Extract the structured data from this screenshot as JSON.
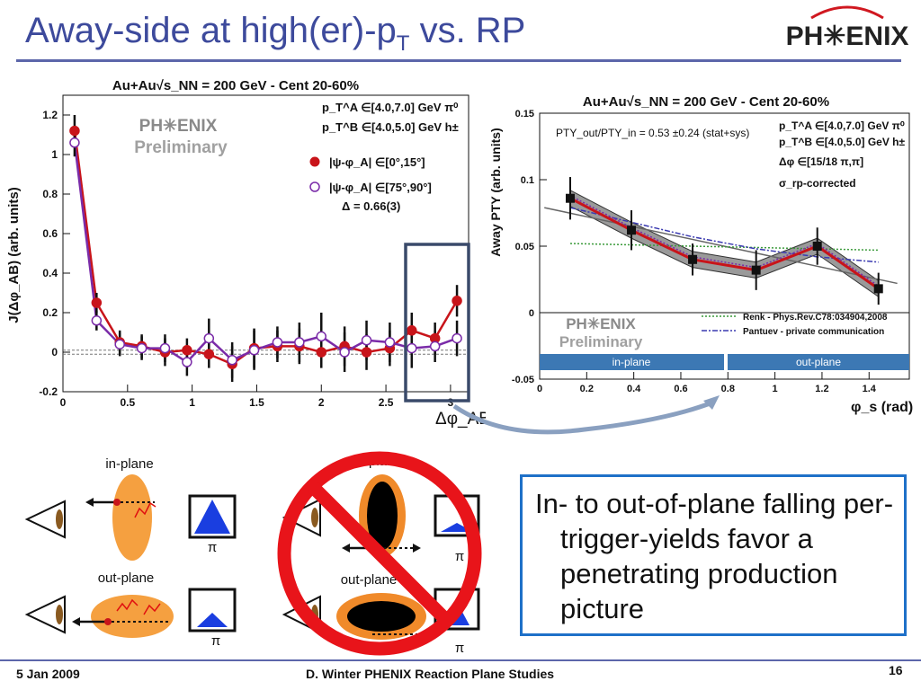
{
  "slide": {
    "title_main": "Away-side at high(er)-p",
    "title_sub": "T",
    "title_tail": " vs. RP",
    "logo": "PH✳ENIX",
    "footer_date": "5 Jan 2009",
    "footer_center": "D. Winter PHENIX Reaction Plane Studies",
    "page_number": "16"
  },
  "left_plot": {
    "title": "Au+Au√s_NN = 200 GeV - Cent 20-60%",
    "ylabel": "J(Δφ_AB) (arb. units)",
    "xlabel": "Δφ_AB",
    "pta": "p_T^A ∈[4.0,7.0] GeV π⁰",
    "ptb": "p_T^B ∈[4.0,5.0] GeV h±",
    "legend_inplane": "|ψ-φ_A| ∈[0°,15°]",
    "legend_outplane": "|ψ-φ_A| ∈[75°,90°]",
    "delta": "Δ = 0.66(3)",
    "watermark_logo": "PH✳ENIX",
    "watermark_text": "Preliminary"
  },
  "right_plot": {
    "title": "Au+Au√s_NN = 200 GeV - Cent 20-60%",
    "ylabel": "Away PTY (arb. units)",
    "xlabel": "φ_s (rad)",
    "ratio_text": "PTY_out/PTY_in = 0.53 ±0.24 (stat+sys)",
    "pta": "p_T^A ∈[4.0,7.0] GeV π⁰",
    "ptb": "p_T^B ∈[4.0,5.0] GeV h±",
    "dphi": "Δφ ∈[15/18 π,π]",
    "corrected": "σ_rp-corrected",
    "band_inplane": "in-plane",
    "band_outplane": "out-plane",
    "legend_renk": "Renk - Phys.Rev.C78:034904,2008",
    "legend_pantuev": "Pantuev - private communication",
    "watermark_logo": "PH✳ENIX",
    "watermark_text": "Preliminary"
  },
  "cartoons": {
    "inplane_label": "in-plane",
    "outplane_label": "out-plane",
    "pi_label": "π",
    "crossed_inplane_label": "in-plane",
    "crossed_outplane_label": "out-plane"
  },
  "conclusion": {
    "text": "In- to out-of-plane falling per-trigger-yields favor a penetrating production picture"
  },
  "colors": {
    "accent": "#3d4a9c",
    "inplane_series": "#c8141a",
    "outplane_series": "#7a2ba8",
    "box_border": "#1e70c8",
    "prohibition": "#e8141a",
    "band": "#3c78b4"
  },
  "chart_data": [
    {
      "type": "line",
      "title": "Au+Au√s_NN = 200 GeV - Cent 20-60%",
      "xlabel": "Δφ_AB",
      "ylabel": "J(Δφ_AB) (arb. units)",
      "xlim": [
        0,
        3.14
      ],
      "ylim": [
        -0.2,
        1.3
      ],
      "x_ticks": [
        "0",
        "0.5",
        "1",
        "1.5",
        "2",
        "2.5",
        "3"
      ],
      "y_ticks": [
        "-0.2",
        "0",
        "0.2",
        "0.4",
        "0.6",
        "0.8",
        "1",
        "1.2"
      ],
      "x": [
        0.09,
        0.26,
        0.44,
        0.61,
        0.79,
        0.96,
        1.13,
        1.31,
        1.48,
        1.66,
        1.83,
        2.0,
        2.18,
        2.35,
        2.53,
        2.7,
        2.88,
        3.05
      ],
      "series": [
        {
          "name": "|ψ-φ_A| ∈[0°,15°]",
          "values": [
            1.12,
            0.25,
            0.05,
            0.03,
            0.0,
            0.01,
            -0.01,
            -0.06,
            0.02,
            0.03,
            0.03,
            0.0,
            0.03,
            0.0,
            0.02,
            0.11,
            0.07,
            0.26
          ],
          "errors": [
            0.08,
            0.05,
            0.06,
            0.06,
            0.07,
            0.06,
            0.07,
            0.09,
            0.1,
            0.08,
            0.09,
            0.08,
            0.1,
            0.09,
            0.09,
            0.09,
            0.08,
            0.08
          ]
        },
        {
          "name": "|ψ-φ_A| ∈[75°,90°]",
          "values": [
            1.06,
            0.16,
            0.04,
            0.02,
            0.02,
            -0.05,
            0.07,
            -0.04,
            0.01,
            0.05,
            0.05,
            0.08,
            0.0,
            0.06,
            0.05,
            0.02,
            0.03,
            0.07
          ],
          "errors": [
            0.07,
            0.05,
            0.06,
            0.06,
            0.07,
            0.07,
            0.1,
            0.09,
            0.1,
            0.08,
            0.1,
            0.12,
            0.1,
            0.1,
            0.1,
            0.1,
            0.08,
            0.09
          ]
        }
      ],
      "annotation": "Δ = 0.66(3)",
      "grid": false
    },
    {
      "type": "line",
      "title": "Au+Au√s_NN = 200 GeV - Cent 20-60%",
      "xlabel": "φ_s (rad)",
      "ylabel": "Away PTY (arb. units)",
      "xlim": [
        0,
        1.571
      ],
      "ylim": [
        -0.05,
        0.15
      ],
      "x_ticks": [
        "0",
        "0.2",
        "0.4",
        "0.6",
        "0.8",
        "1",
        "1.2",
        "1.4"
      ],
      "y_ticks": [
        "-0.05",
        "0",
        "0.05",
        "0.1",
        "0.15"
      ],
      "x": [
        0.13,
        0.39,
        0.65,
        0.92,
        1.18,
        1.44
      ],
      "series": [
        {
          "name": "data",
          "values": [
            0.086,
            0.062,
            0.04,
            0.032,
            0.05,
            0.018
          ],
          "errors": [
            0.016,
            0.015,
            0.012,
            0.015,
            0.014,
            0.012
          ]
        },
        {
          "name": "Renk - Phys.Rev.C78:034904,2008",
          "values": [
            0.052,
            0.051,
            0.05,
            0.049,
            0.048,
            0.047
          ]
        },
        {
          "name": "Pantuev - private communication",
          "values": [
            0.079,
            0.068,
            0.057,
            0.048,
            0.042,
            0.038
          ]
        }
      ],
      "annotation": "PTY_out/PTY_in = 0.53 ±0.24 (stat+sys)",
      "grid": false
    }
  ]
}
